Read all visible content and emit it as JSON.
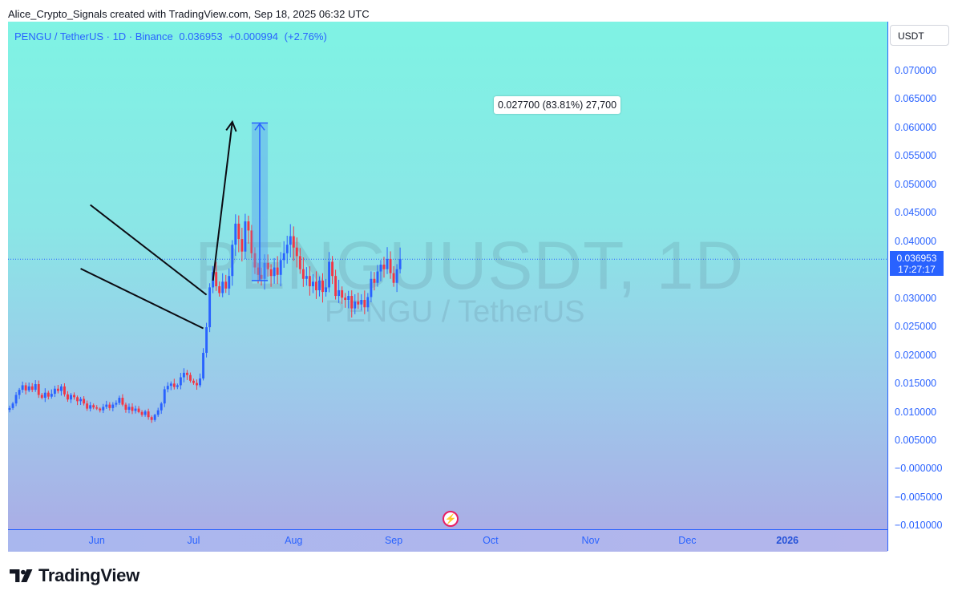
{
  "header": {
    "caption": "Alice_Crypto_Signals created with TradingView.com, Sep 18, 2025 06:32 UTC"
  },
  "symbol_bar": {
    "symbol": "PENGU / TetherUS · 1D · Binance",
    "last": "0.036953",
    "change": "+0.000994",
    "change_pct": "(+2.76%)"
  },
  "watermark": {
    "ticker": "PENGUUSDT, 1D",
    "name": "PENGU / TetherUS"
  },
  "price_axis": {
    "unit": "USDT",
    "current_price": "0.036953",
    "countdown": "17:27:17"
  },
  "measure_tool": {
    "label": "0.027700 (83.81%) 27,700"
  },
  "brand": {
    "name": "TradingView"
  },
  "colors": {
    "up": "#2962ff",
    "down": "#f23645",
    "axis_text": "#2962ff",
    "projection_fill": "#5aa2ef"
  },
  "icons": [
    "flash-icon",
    "tradingview-logo-icon"
  ],
  "chart_data": {
    "type": "candlestick",
    "title": "PENGU / TetherUS · 1D · Binance",
    "ylim": [
      -0.01,
      0.075
    ],
    "y_ticks": [
      "0.070000",
      "0.065000",
      "0.060000",
      "0.055000",
      "0.050000",
      "0.045000",
      "0.040000",
      "0.035000",
      "0.030000",
      "0.025000",
      "0.020000",
      "0.015000",
      "0.010000",
      "0.005000",
      "−0.000000",
      "−0.005000",
      "−0.010000"
    ],
    "y_tick_values": [
      0.07,
      0.065,
      0.06,
      0.055,
      0.05,
      0.045,
      0.04,
      0.035,
      0.03,
      0.025,
      0.02,
      0.015,
      0.01,
      0.005,
      0.0,
      -0.005,
      -0.01
    ],
    "x_ticks": [
      "Jun",
      "Jul",
      "Aug",
      "Sep",
      "Oct",
      "Nov",
      "Dec",
      "2026"
    ],
    "x_tick_days": [
      0,
      30,
      61,
      92,
      122,
      153,
      183,
      214
    ],
    "x_domain_days": [
      -27.5,
      245
    ],
    "first_candle_day": -27,
    "closes": [
      0.0108,
      0.0116,
      0.0131,
      0.014,
      0.0148,
      0.0139,
      0.0146,
      0.014,
      0.015,
      0.0131,
      0.0126,
      0.0135,
      0.0128,
      0.0133,
      0.0142,
      0.0138,
      0.0146,
      0.0132,
      0.0123,
      0.0131,
      0.0127,
      0.012,
      0.0124,
      0.0116,
      0.0107,
      0.0113,
      0.0109,
      0.0107,
      0.0104,
      0.011,
      0.0114,
      0.0108,
      0.0114,
      0.0117,
      0.0126,
      0.0114,
      0.0105,
      0.011,
      0.0103,
      0.0107,
      0.0101,
      0.0096,
      0.0102,
      0.0092,
      0.0087,
      0.0096,
      0.0104,
      0.0116,
      0.0141,
      0.0147,
      0.0151,
      0.0145,
      0.0148,
      0.0162,
      0.017,
      0.0166,
      0.0156,
      0.0152,
      0.0148,
      0.016,
      0.0205,
      0.025,
      0.032,
      0.0347,
      0.0322,
      0.031,
      0.033,
      0.0318,
      0.034,
      0.0395,
      0.0432,
      0.0405,
      0.0383,
      0.0436,
      0.042,
      0.038,
      0.0355,
      0.0342,
      0.0335,
      0.0363,
      0.0352,
      0.034,
      0.0355,
      0.0342,
      0.0368,
      0.038,
      0.0395,
      0.041,
      0.039,
      0.0375,
      0.0352,
      0.0335,
      0.034,
      0.0322,
      0.033,
      0.0315,
      0.0332,
      0.0312,
      0.032,
      0.0365,
      0.034,
      0.0305,
      0.0315,
      0.0302,
      0.0298,
      0.0305,
      0.0283,
      0.0295,
      0.029,
      0.0298,
      0.0285,
      0.0303,
      0.0335,
      0.0328,
      0.0348,
      0.036,
      0.0352,
      0.037,
      0.0345,
      0.0328,
      0.0352,
      0.037
    ],
    "drawings": {
      "upper_trendline": [
        [
          -2,
          0.0465
        ],
        [
          34,
          0.0307
        ]
      ],
      "lower_trendline": [
        [
          -5,
          0.0353
        ],
        [
          33,
          0.0248
        ]
      ],
      "projection_arrow": [
        [
          36,
          0.0332
        ],
        [
          42,
          0.0611
        ]
      ],
      "price_range": {
        "x_start": 48,
        "x_end": 53,
        "from": 0.0332,
        "to": 0.0609
      }
    },
    "last_price_line": 0.036953
  }
}
